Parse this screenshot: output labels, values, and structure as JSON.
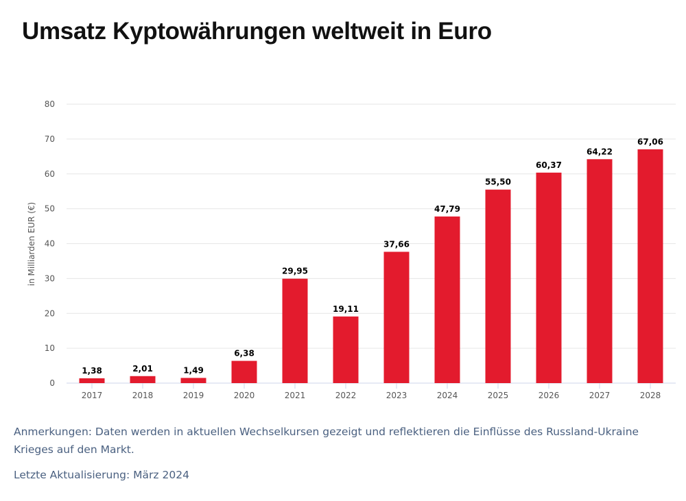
{
  "title": "Umsatz Kyptowährungen weltweit in Euro",
  "chart_data": {
    "type": "bar",
    "title": "Umsatz Kyptowährungen weltweit in Euro",
    "ylabel": "in Milliarden EUR (€)",
    "xlabel": "",
    "ylim": [
      0,
      80
    ],
    "yticks": [
      0,
      10,
      20,
      30,
      40,
      50,
      60,
      70,
      80
    ],
    "grid": true,
    "bar_color": "#e31b2d",
    "categories": [
      "2017",
      "2018",
      "2019",
      "2020",
      "2021",
      "2022",
      "2023",
      "2024",
      "2025",
      "2026",
      "2027",
      "2028"
    ],
    "values": [
      1.38,
      2.01,
      1.49,
      6.38,
      29.95,
      19.11,
      37.66,
      47.79,
      55.5,
      60.37,
      64.22,
      67.06
    ],
    "labels": [
      "1,38",
      "2,01",
      "1,49",
      "6,38",
      "29,95",
      "19,11",
      "37,66",
      "47,79",
      "55,50",
      "60,37",
      "64,22",
      "67,06"
    ]
  },
  "notes": {
    "remarks": "Anmerkungen: Daten werden in aktuellen Wechselkursen gezeigt und reflektieren die Einflüsse des Russland-Ukraine Krieges auf den Markt.",
    "updated": "Letzte Aktualisierung: März 2024"
  }
}
